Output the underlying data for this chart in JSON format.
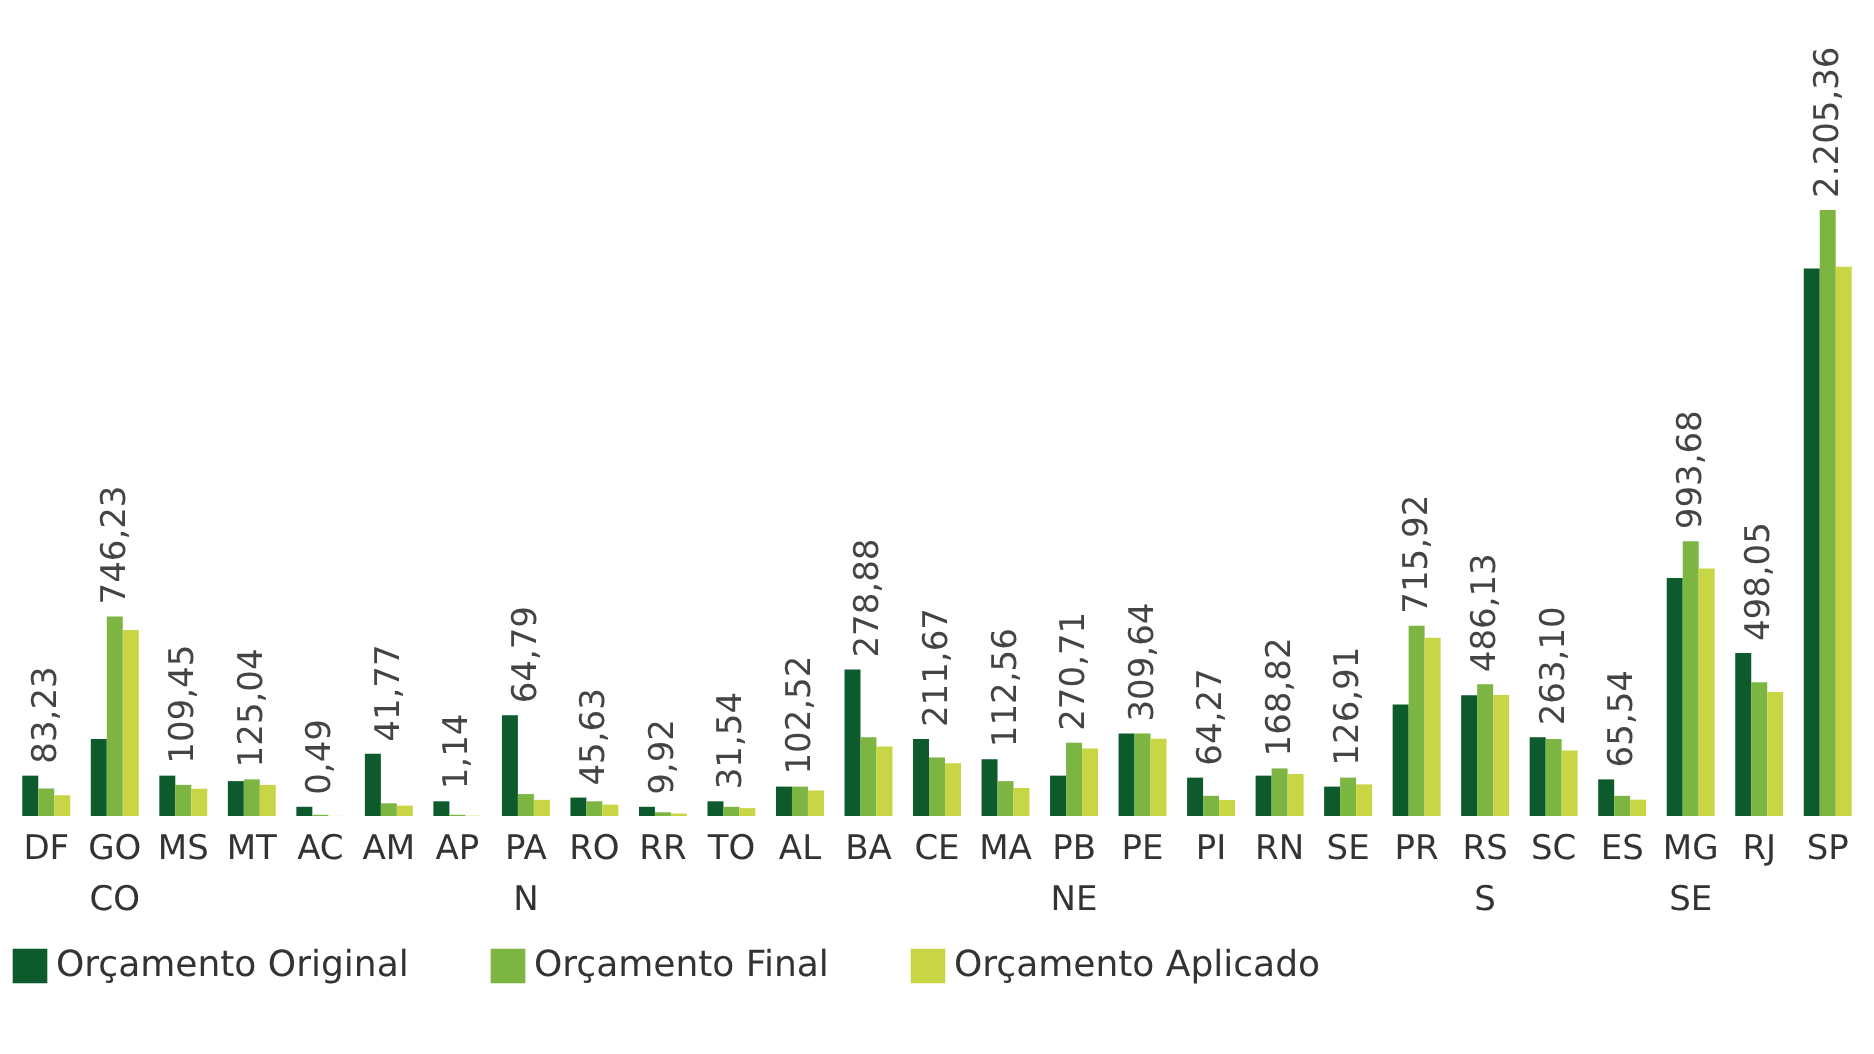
{
  "chart_data": {
    "type": "bar",
    "categories": [
      "DF",
      "GO",
      "MS",
      "MT",
      "AC",
      "AM",
      "AP",
      "PA",
      "RO",
      "RR",
      "TO",
      "AL",
      "BA",
      "CE",
      "MA",
      "PB",
      "PE",
      "PI",
      "RN",
      "SE",
      "PR",
      "RS",
      "SC",
      "ES",
      "MG",
      "RJ",
      "SP"
    ],
    "series": [
      {
        "name": "Orçamento Original",
        "color": "#0d5a2c",
        "values": [
          162,
          309,
          162,
          140,
          37,
          250,
          59,
          404,
          74,
          37,
          59,
          118,
          588,
          309,
          228,
          162,
          331,
          154,
          162,
          118,
          448,
          485,
          316,
          147,
          955,
          654,
          2198
        ]
      },
      {
        "name": "Orçamento Final",
        "color": "#7db543",
        "values": [
          110,
          801,
          125,
          147,
          5,
          51,
          5,
          88,
          59,
          15,
          37,
          118,
          316,
          235,
          140,
          294,
          331,
          81,
          191,
          154,
          764,
          529,
          309,
          81,
          1103,
          537,
          2433
        ]
      },
      {
        "name": "Orçamento Aplicado",
        "color": "#c8d645",
        "values": [
          83.23,
          746.23,
          109.45,
          125.04,
          0.49,
          41.77,
          1.14,
          64.79,
          45.63,
          9.92,
          31.54,
          102.52,
          278.88,
          211.67,
          112.56,
          270.71,
          309.64,
          64.27,
          168.82,
          126.91,
          715.92,
          486.13,
          263.1,
          65.54,
          993.68,
          498.05,
          2205.36
        ],
        "value_labels": [
          "83,23",
          "746,23",
          "109,45",
          "125,04",
          "0,49",
          "41,77",
          "1,14",
          "64,79",
          "45,63",
          "9,92",
          "31,54",
          "102,52",
          "278,88",
          "211,67",
          "112,56",
          "270,71",
          "309,64",
          "64,27",
          "168,82",
          "126,91",
          "715,92",
          "486,13",
          "263,10",
          "65,54",
          "993,68",
          "498,05",
          "2.205,36"
        ]
      }
    ],
    "annotations": [
      "CO",
      "N",
      "NE",
      "S",
      "SE"
    ],
    "legend": "bottom",
    "tick_labels": "x"
  }
}
